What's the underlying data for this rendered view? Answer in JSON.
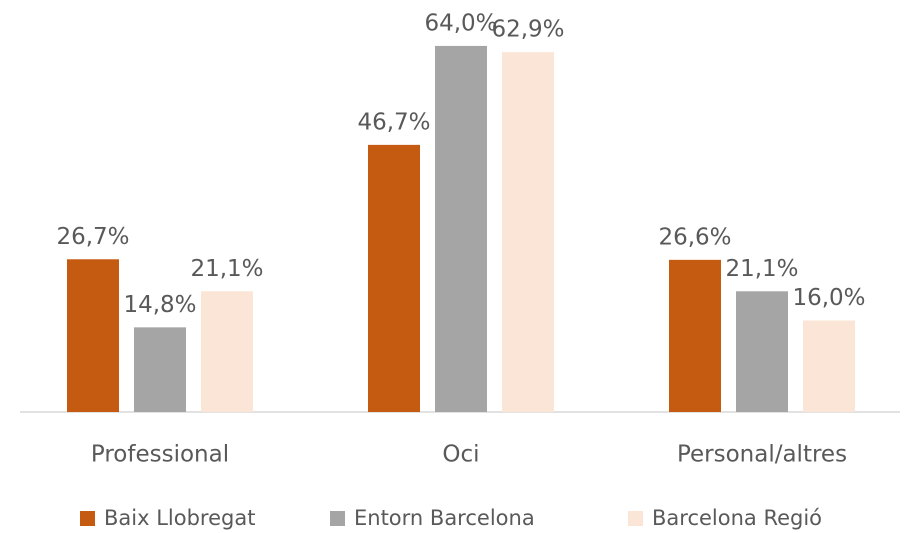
{
  "chart_data": {
    "type": "bar",
    "categories": [
      "Professional",
      "Oci",
      "Personal/altres"
    ],
    "series": [
      {
        "name": "Baix Llobregat",
        "color": "#C55A11",
        "values": [
          26.7,
          46.7,
          26.6
        ],
        "value_labels": [
          "26,7%",
          "46,7%",
          "26,6%"
        ]
      },
      {
        "name": "Entorn Barcelona",
        "color": "#A5A5A5",
        "values": [
          14.8,
          64.0,
          21.1
        ],
        "value_labels": [
          "14,8%",
          "64,0%",
          "21,1%"
        ]
      },
      {
        "name": "Barcelona Regió",
        "color": "#FBE5D6",
        "values": [
          21.1,
          62.9,
          16.0
        ],
        "value_labels": [
          "21,1%",
          "62,9%",
          "16,0%"
        ]
      }
    ],
    "legend": "bottom"
  }
}
